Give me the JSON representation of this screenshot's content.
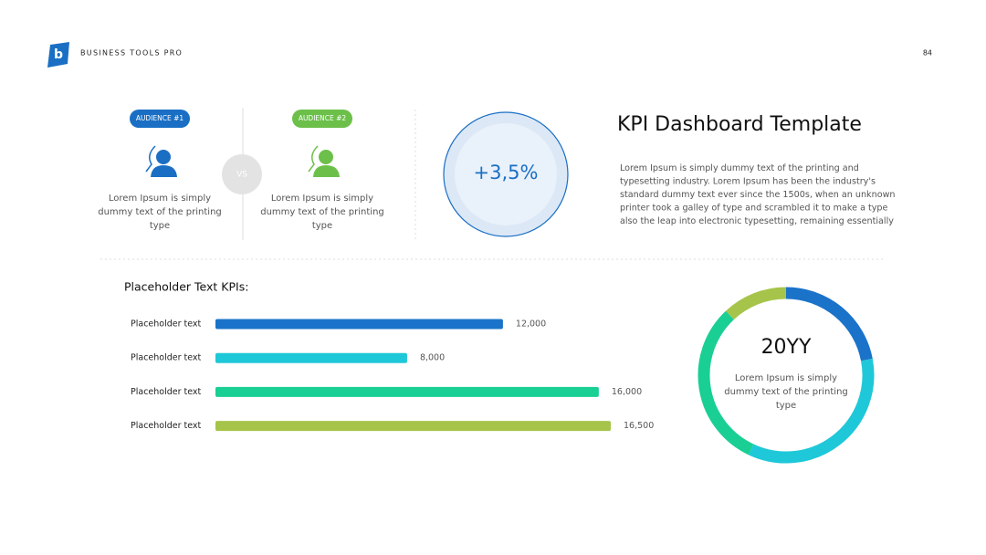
{
  "header": {
    "brand": "BUSINESS TOOLS PRO",
    "page_number": "84",
    "logo_letter": "b"
  },
  "audiences": [
    {
      "label": "AUDIENCE #1",
      "lines": [
        "Lorem Ipsum is simply",
        "dummy text of the printing",
        "type"
      ]
    },
    {
      "label": "AUDIENCE #2",
      "lines": [
        "Lorem Ipsum is simply",
        "dummy text of the printing",
        "type"
      ]
    }
  ],
  "vs": "VS",
  "kpi": {
    "value": "+3,5%"
  },
  "intro": {
    "title": "KPI Dashboard Template",
    "lines": [
      "Lorem Ipsum is simply dummy text of the printing and",
      "typesetting industry. Lorem Ipsum has been the industry's",
      "standard dummy text ever since the 1500s, when an unknown",
      "printer took a galley of type and scrambled it to make a type",
      "also the leap into electronic typesetting, remaining essentially"
    ]
  },
  "chart_data": [
    {
      "type": "bar",
      "orientation": "horizontal",
      "title": "Placeholder Text KPIs:",
      "categories": [
        "Placeholder text",
        "Placeholder text",
        "Placeholder text",
        "Placeholder text"
      ],
      "values": [
        12000,
        8000,
        16000,
        16500
      ],
      "value_labels": [
        "12,000",
        "8,000",
        "16,000",
        "16,500"
      ],
      "colors": [
        "#1a73c9",
        "#1ec8d8",
        "#19cf94",
        "#a6c44a"
      ]
    },
    {
      "type": "pie",
      "donut": true,
      "center_title": "20YY",
      "center_lines": [
        "Lorem Ipsum is simply",
        "dummy text of the printing",
        "type"
      ],
      "values": [
        22,
        35,
        31,
        12
      ],
      "colors": [
        "#1a73c9",
        "#1ec8d8",
        "#19cf94",
        "#a6c44a"
      ]
    }
  ]
}
